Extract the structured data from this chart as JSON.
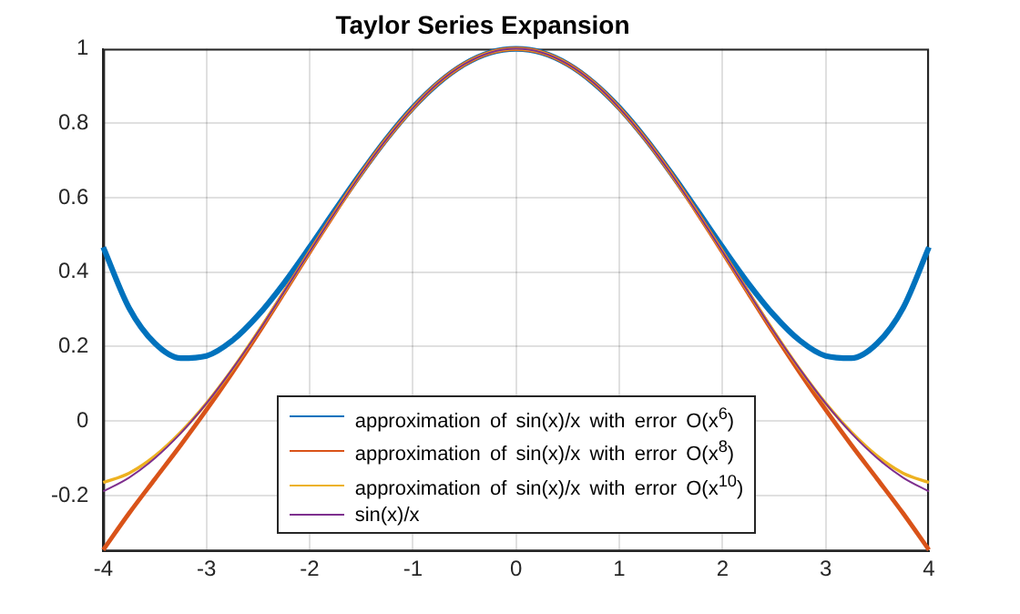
{
  "chart_data": {
    "type": "line",
    "title": "Taylor Series Expansion",
    "x": [
      -4,
      -3.75,
      -3.5,
      -3.25,
      -3,
      -2.75,
      -2.5,
      -2.25,
      -2,
      -1.75,
      -1.5,
      -1.25,
      -1,
      -0.75,
      -0.5,
      -0.25,
      0,
      0.25,
      0.5,
      0.75,
      1,
      1.25,
      1.5,
      1.75,
      2,
      2.25,
      2.5,
      2.75,
      3,
      3.25,
      3.5,
      3.75,
      4
    ],
    "series": [
      {
        "name": "approximation of sin(x)/x with error O(x$^{6}$)",
        "color": "#0072bd",
        "values": [
          0.467,
          0.304,
          0.209,
          0.169,
          0.175,
          0.216,
          0.284,
          0.37,
          0.467,
          0.568,
          0.667,
          0.76,
          0.842,
          0.909,
          0.959,
          0.99,
          1,
          0.99,
          0.959,
          0.909,
          0.842,
          0.76,
          0.667,
          0.568,
          0.467,
          0.37,
          0.284,
          0.216,
          0.175,
          0.169,
          0.209,
          0.304,
          0.467
        ]
      },
      {
        "name": "approximation of sin(x)/x with error O(x$^{8}$)",
        "color": "#d95319",
        "values": [
          -0.346,
          -0.248,
          -0.156,
          -0.065,
          0.03,
          0.13,
          0.235,
          0.344,
          0.454,
          0.562,
          0.665,
          0.759,
          0.841,
          0.909,
          0.959,
          0.99,
          1,
          0.99,
          0.959,
          0.909,
          0.841,
          0.759,
          0.665,
          0.562,
          0.454,
          0.344,
          0.235,
          0.13,
          0.03,
          -0.065,
          -0.156,
          -0.248,
          -0.346
        ]
      },
      {
        "name": "approximation of sin(x)/x with error O(x$^{10}$)",
        "color": "#edb120",
        "values": [
          -0.165,
          -0.14,
          -0.094,
          -0.03,
          0.048,
          0.139,
          0.24,
          0.346,
          0.455,
          0.562,
          0.665,
          0.759,
          0.841,
          0.909,
          0.959,
          0.99,
          1,
          0.99,
          0.959,
          0.909,
          0.841,
          0.759,
          0.665,
          0.562,
          0.455,
          0.346,
          0.24,
          0.139,
          0.048,
          -0.03,
          -0.094,
          -0.14,
          -0.165
        ]
      },
      {
        "name": "sin(x)/x",
        "color": "#7e2f8e",
        "values": [
          -0.189,
          -0.152,
          -0.1,
          -0.033,
          0.047,
          0.139,
          0.239,
          0.346,
          0.455,
          0.562,
          0.665,
          0.759,
          0.841,
          0.909,
          0.959,
          0.99,
          1,
          0.99,
          0.959,
          0.909,
          0.841,
          0.759,
          0.665,
          0.562,
          0.455,
          0.346,
          0.239,
          0.139,
          0.047,
          -0.033,
          -0.1,
          -0.152,
          -0.189
        ]
      }
    ],
    "xlim": [
      -4,
      4
    ],
    "xticks": [
      -4,
      -3,
      -2,
      -1,
      0,
      1,
      2,
      3,
      4
    ],
    "ylim": [
      -0.35,
      1
    ],
    "yticks": [
      -0.2,
      0,
      0.2,
      0.4,
      0.6,
      0.8,
      1
    ],
    "grid": true,
    "legend": "bottom",
    "marker": "none",
    "line_style": "solid"
  }
}
